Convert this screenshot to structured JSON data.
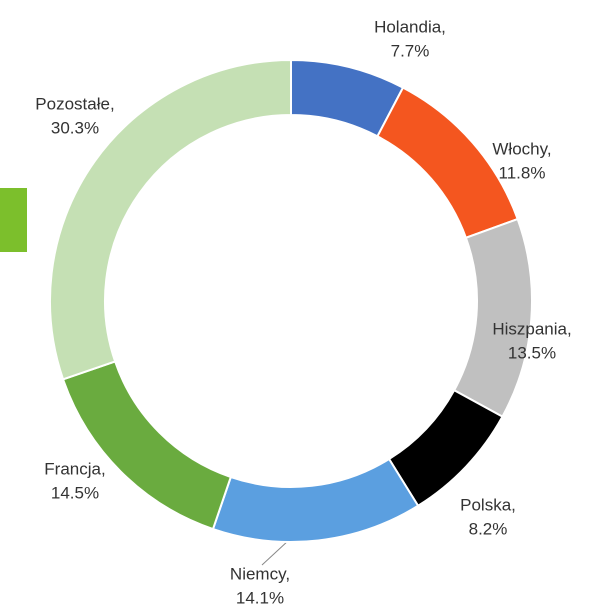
{
  "chart_data": {
    "type": "donut",
    "categories": [
      "Holandia,",
      "Włochy,",
      "Hiszpania,",
      "Polska,",
      "Niemcy,",
      "Francja,",
      "Pozostałe,"
    ],
    "values": [
      7.7,
      11.8,
      13.5,
      8.2,
      14.1,
      14.5,
      30.3
    ],
    "value_labels": [
      "7.7%",
      "11.8%",
      "13.5%",
      "8.2%",
      "14.1%",
      "14.5%",
      "30.3%"
    ],
    "colors": [
      "#4472c4",
      "#f4561f",
      "#c0c0c0",
      "#000000",
      "#5b9fe0",
      "#6aab3f",
      "#c5e0b4"
    ]
  }
}
